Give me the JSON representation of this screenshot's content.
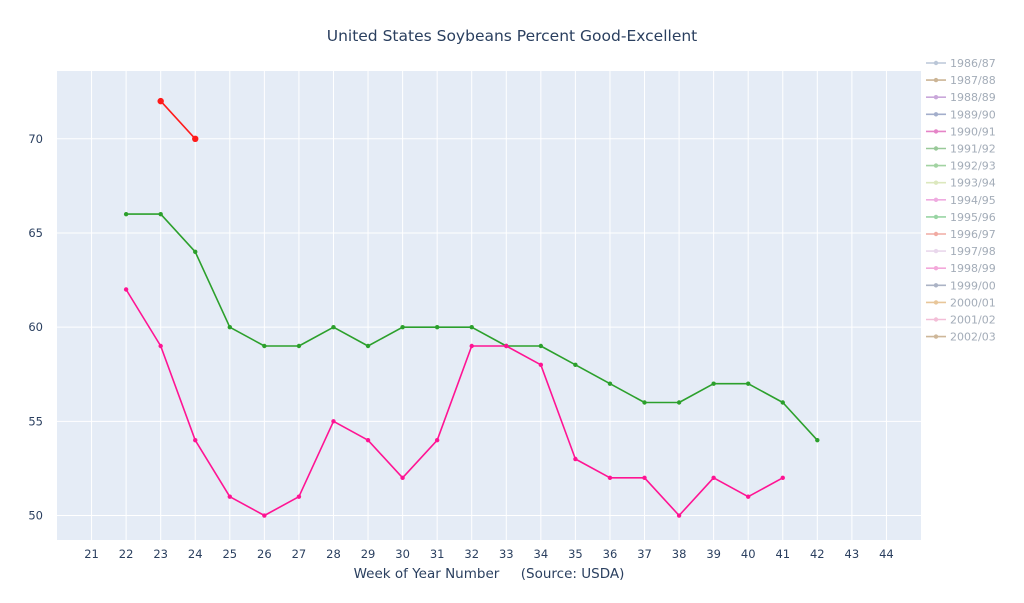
{
  "chart_data": {
    "type": "line",
    "title": "United States Soybeans Percent Good-Excellent",
    "xlabel": "Week of Year Number     (Source: USDA)",
    "ylabel": "",
    "xlim": [
      20,
      45
    ],
    "ylim": [
      48.7,
      73.6
    ],
    "x_ticks": [
      21,
      22,
      23,
      24,
      25,
      26,
      27,
      28,
      29,
      30,
      31,
      32,
      33,
      34,
      35,
      36,
      37,
      38,
      39,
      40,
      41,
      42,
      43,
      44
    ],
    "y_ticks": [
      50,
      55,
      60,
      65,
      70
    ],
    "grid": true,
    "legend_position": "right",
    "colors": {
      "plot_bg": "#e5ecf6",
      "grid": "#ffffff",
      "tick_text": "#2a3f5f",
      "title_text": "#2a3f5f"
    },
    "series": [
      {
        "name": "1986/87",
        "color": "#b4c2d4",
        "opacity": 0.9,
        "x": [],
        "y": []
      },
      {
        "name": "1987/88",
        "color": "#c7ad8b",
        "opacity": 0.9,
        "x": [],
        "y": []
      },
      {
        "name": "1988/89",
        "color": "#c49ed6",
        "opacity": 0.9,
        "x": [],
        "y": []
      },
      {
        "name": "1989/90",
        "color": "#9aa6c6",
        "opacity": 0.9,
        "x": [],
        "y": []
      },
      {
        "name": "1990/91",
        "color": "#e377c2",
        "opacity": 0.9,
        "x": [],
        "y": []
      },
      {
        "name": "1991/92",
        "color": "#8fc48f",
        "opacity": 0.9,
        "x": [],
        "y": []
      },
      {
        "name": "1992/93",
        "color": "#98cf98",
        "opacity": 0.9,
        "x": [],
        "y": []
      },
      {
        "name": "1993/94",
        "color": "#d9e6b8",
        "opacity": 0.9,
        "x": [],
        "y": []
      },
      {
        "name": "1994/95",
        "color": "#eea3dd",
        "opacity": 0.9,
        "x": [],
        "y": []
      },
      {
        "name": "1995/96",
        "color": "#8fd19b",
        "opacity": 0.9,
        "x": [],
        "y": []
      },
      {
        "name": "1996/97",
        "color": "#f0a39a",
        "opacity": 0.9,
        "x": [],
        "y": []
      },
      {
        "name": "1997/98",
        "color": "#e7d3ea",
        "opacity": 0.9,
        "x": [],
        "y": []
      },
      {
        "name": "1998/99",
        "color": "#f29fd6",
        "opacity": 0.9,
        "x": [],
        "y": []
      },
      {
        "name": "1999/00",
        "color": "#a3abbf",
        "opacity": 0.9,
        "x": [],
        "y": []
      },
      {
        "name": "2000/01",
        "color": "#e6c08f",
        "opacity": 0.9,
        "x": [],
        "y": []
      },
      {
        "name": "2001/02",
        "color": "#f2b8d3",
        "opacity": 0.9,
        "x": [],
        "y": []
      },
      {
        "name": "2002/03",
        "color": "#c9b08f",
        "opacity": 0.9,
        "x": [],
        "y": []
      },
      {
        "name": "",
        "color": "#ff1a1a",
        "opacity": 1,
        "marker_size": 3.2,
        "x": [
          23,
          24
        ],
        "y": [
          72,
          70
        ]
      },
      {
        "name": "",
        "color": "#2ca02c",
        "opacity": 1,
        "marker_size": 2.2,
        "x": [
          22,
          23,
          24,
          25,
          26,
          27,
          28,
          29,
          30,
          31,
          32,
          33,
          34,
          35,
          36,
          37,
          38,
          39,
          40,
          41,
          42
        ],
        "y": [
          66,
          66,
          64,
          60,
          59,
          59,
          60,
          59,
          60,
          60,
          60,
          59,
          59,
          58,
          57,
          56,
          56,
          57,
          57,
          56,
          54
        ]
      },
      {
        "name": "",
        "color": "#ff1493",
        "opacity": 1,
        "marker_size": 2.2,
        "x": [
          22,
          23,
          24,
          25,
          26,
          27,
          28,
          29,
          30,
          31,
          32,
          33,
          34,
          35,
          36,
          37,
          38,
          39,
          40,
          41
        ],
        "y": [
          62,
          59,
          54,
          51,
          50,
          51,
          55,
          54,
          52,
          54,
          59,
          59,
          58,
          53,
          52,
          52,
          50,
          52,
          51,
          52
        ]
      }
    ]
  }
}
